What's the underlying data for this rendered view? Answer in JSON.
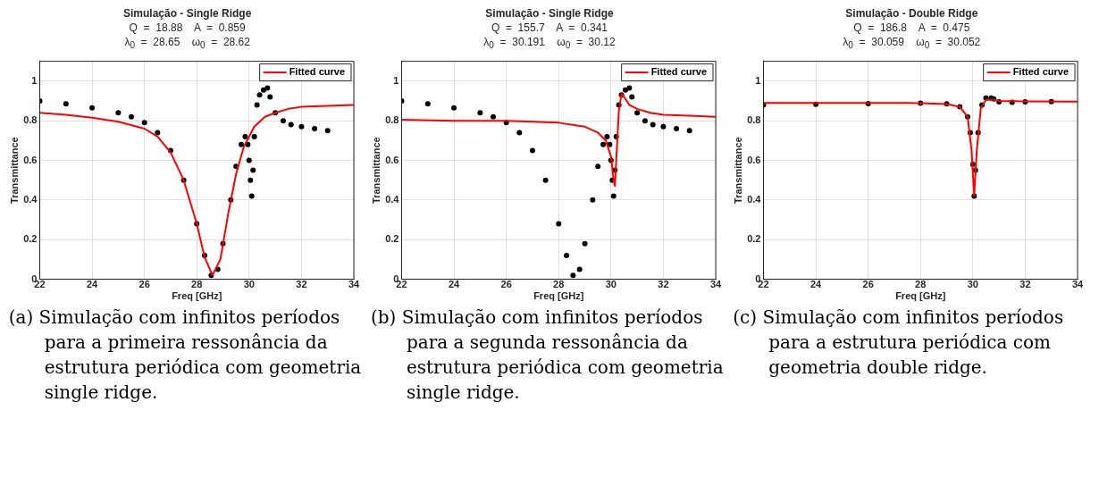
{
  "chart_data": [
    {
      "type": "line",
      "title": "Simulação  -  Single  Ridge",
      "subtitle": "Q  =  18.88    A  =  0.859\nλ$_{0}$  =  28.65    ω$_{0}$  =  28.62",
      "xlabel": "Freq [GHz]",
      "ylabel": "Transmittance",
      "xlim": [
        22,
        34
      ],
      "xticks": [
        22,
        24,
        26,
        28,
        30,
        32,
        34
      ],
      "ylim": [
        0,
        1.1
      ],
      "yticks": [
        0,
        0.2,
        0.4,
        0.6,
        0.8,
        1
      ],
      "grid": true,
      "legend": "top right",
      "annotations": [
        "(a) Simulação com infinitos períodos para a primeira ressonância da estrutura periódica com geometria single ridge."
      ],
      "series": [
        {
          "type": "scatter",
          "marker": "circle",
          "color": "#000000",
          "x": [
            22,
            23,
            24,
            25,
            25.5,
            26,
            26.5,
            27,
            27.5,
            28,
            28.3,
            28.55,
            28.8,
            29,
            29.3,
            29.5,
            29.7,
            29.85,
            29.95,
            30,
            30.05,
            30.1,
            30.15,
            30.2,
            30.3,
            30.4,
            30.55,
            30.7,
            30.8,
            31,
            31.3,
            31.6,
            32,
            32.5,
            33
          ],
          "values": [
            0.9,
            0.885,
            0.865,
            0.84,
            0.82,
            0.79,
            0.74,
            0.65,
            0.5,
            0.28,
            0.12,
            0.02,
            0.05,
            0.18,
            0.4,
            0.57,
            0.68,
            0.72,
            0.68,
            0.6,
            0.5,
            0.42,
            0.55,
            0.72,
            0.88,
            0.93,
            0.955,
            0.965,
            0.92,
            0.84,
            0.8,
            0.78,
            0.77,
            0.76,
            0.75
          ]
        },
        {
          "name": "Fitted curve",
          "marker": "none",
          "line_style": "solid",
          "color": "#ff0000",
          "x": [
            22,
            23,
            24,
            25,
            26,
            26.5,
            27,
            27.5,
            28,
            28.3,
            28.6,
            28.9,
            29.2,
            29.5,
            29.8,
            30.2,
            30.6,
            31,
            31.5,
            32,
            33,
            34
          ],
          "values": [
            0.84,
            0.83,
            0.815,
            0.795,
            0.76,
            0.72,
            0.64,
            0.5,
            0.28,
            0.11,
            0.02,
            0.1,
            0.33,
            0.53,
            0.67,
            0.77,
            0.82,
            0.84,
            0.86,
            0.87,
            0.875,
            0.88
          ]
        }
      ]
    },
    {
      "type": "line",
      "title": "Simulação  -  Single  Ridge",
      "subtitle": "Q  =  155.7    A  =  0.341\nλ$_{0}$  =  30.191    ω$_{0}$  =  30.12",
      "xlabel": "Freq [GHz]",
      "ylabel": "Transmittance",
      "xlim": [
        22,
        34
      ],
      "xticks": [
        22,
        24,
        26,
        28,
        30,
        32,
        34
      ],
      "ylim": [
        0,
        1.1
      ],
      "yticks": [
        0,
        0.2,
        0.4,
        0.6,
        0.8,
        1
      ],
      "grid": true,
      "legend": "top right",
      "annotations": [
        "(b) Simulação com infinitos períodos para a segunda ressonância da estrutura periódica com geometria single ridge."
      ],
      "series": [
        {
          "type": "scatter",
          "marker": "circle",
          "color": "#000000",
          "x": [
            22,
            23,
            24,
            25,
            25.5,
            26,
            26.5,
            27,
            27.5,
            28,
            28.3,
            28.55,
            28.8,
            29,
            29.3,
            29.5,
            29.7,
            29.85,
            29.95,
            30,
            30.05,
            30.1,
            30.15,
            30.2,
            30.3,
            30.4,
            30.55,
            30.7,
            30.8,
            31,
            31.3,
            31.6,
            32,
            32.5,
            33
          ],
          "values": [
            0.9,
            0.885,
            0.865,
            0.84,
            0.82,
            0.79,
            0.74,
            0.65,
            0.5,
            0.28,
            0.12,
            0.02,
            0.05,
            0.18,
            0.4,
            0.57,
            0.68,
            0.72,
            0.68,
            0.6,
            0.5,
            0.42,
            0.55,
            0.72,
            0.88,
            0.93,
            0.955,
            0.965,
            0.92,
            0.84,
            0.8,
            0.78,
            0.77,
            0.76,
            0.75
          ]
        },
        {
          "name": "Fitted curve",
          "marker": "none",
          "line_style": "solid",
          "color": "#ff0000",
          "x": [
            22,
            24,
            26,
            28,
            29,
            29.5,
            29.8,
            30,
            30.1,
            30.15,
            30.2,
            30.3,
            30.4,
            30.5,
            30.7,
            31,
            31.5,
            32,
            33,
            34
          ],
          "values": [
            0.805,
            0.8,
            0.8,
            0.79,
            0.77,
            0.74,
            0.7,
            0.62,
            0.5,
            0.47,
            0.6,
            0.85,
            0.935,
            0.92,
            0.88,
            0.86,
            0.84,
            0.83,
            0.825,
            0.82
          ]
        }
      ]
    },
    {
      "type": "line",
      "title": "Simulação  -  Double  Ridge",
      "subtitle": "Q  =  186.8    A  =  0.475\nλ$_{0}$  =  30.059    ω$_{0}$  =  30.052",
      "xlabel": "Freq [GHz]",
      "ylabel": "Transmittance",
      "xlim": [
        22,
        34
      ],
      "xticks": [
        22,
        24,
        26,
        28,
        30,
        32,
        34
      ],
      "ylim": [
        0,
        1.1
      ],
      "yticks": [
        0,
        0.2,
        0.4,
        0.6,
        0.8,
        1
      ],
      "grid": true,
      "legend": "top right",
      "annotations": [
        "(c) Simulação com infinitos períodos para a estrutura periódica com geometria double ridge."
      ],
      "series": [
        {
          "type": "scatter",
          "marker": "circle",
          "color": "#000000",
          "x": [
            22,
            24,
            26,
            28,
            29,
            29.5,
            29.8,
            29.9,
            30,
            30.05,
            30.1,
            30.2,
            30.35,
            30.5,
            30.7,
            30.8,
            31,
            31.5,
            32,
            33
          ],
          "values": [
            0.88,
            0.883,
            0.886,
            0.889,
            0.885,
            0.87,
            0.82,
            0.74,
            0.58,
            0.42,
            0.55,
            0.74,
            0.88,
            0.915,
            0.915,
            0.91,
            0.895,
            0.893,
            0.895,
            0.896
          ]
        },
        {
          "name": "Fitted curve",
          "marker": "none",
          "line_style": "solid",
          "color": "#ff0000",
          "x": [
            22,
            26,
            28,
            29,
            29.5,
            29.8,
            29.95,
            30.05,
            30.15,
            30.3,
            30.5,
            30.8,
            31,
            32,
            34
          ],
          "values": [
            0.89,
            0.89,
            0.889,
            0.884,
            0.87,
            0.82,
            0.65,
            0.42,
            0.65,
            0.86,
            0.905,
            0.905,
            0.9,
            0.898,
            0.897
          ]
        }
      ]
    }
  ]
}
